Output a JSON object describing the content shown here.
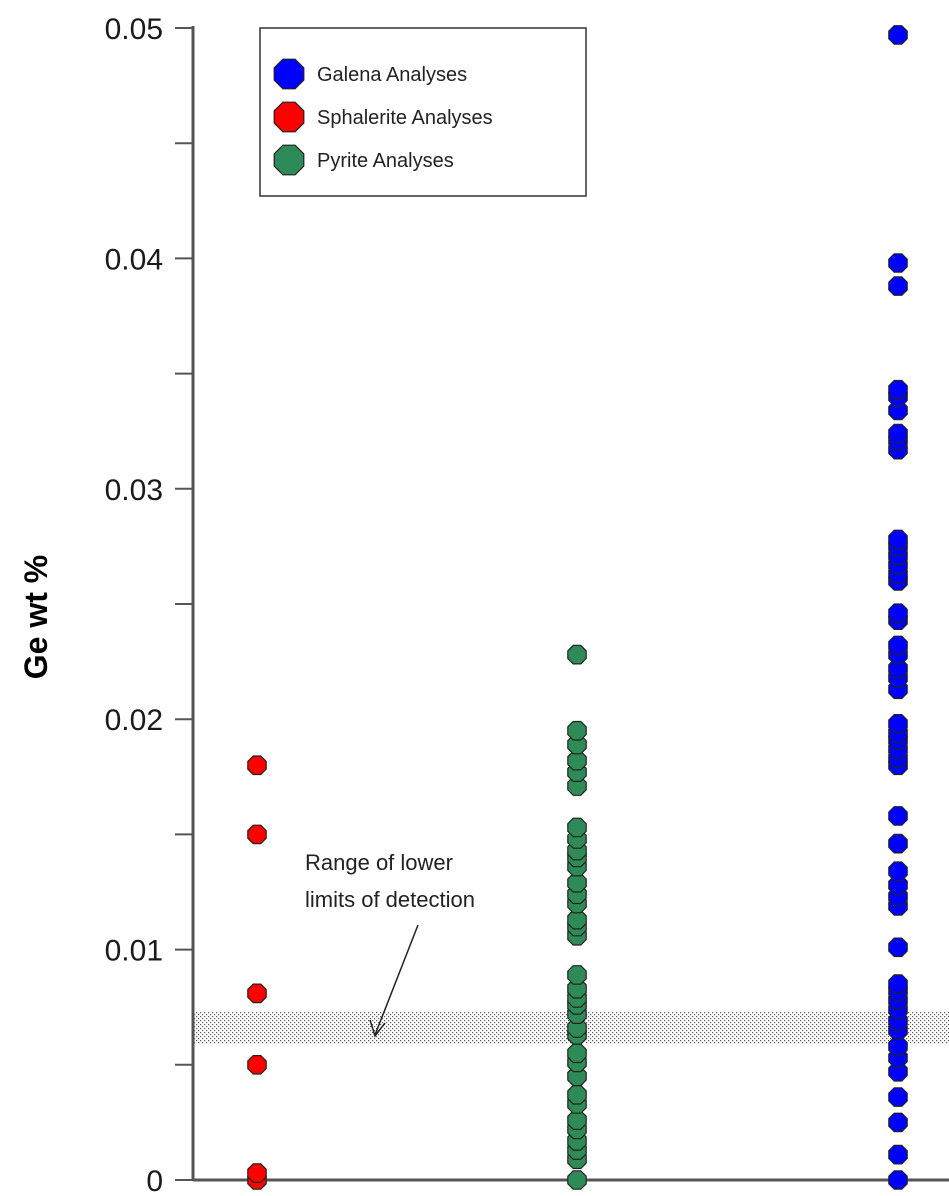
{
  "chart_data": {
    "type": "scatter",
    "title": "",
    "xlabel": "",
    "ylabel": "Ge wt %",
    "ylim": [
      0,
      0.05
    ],
    "yticks": [
      "0",
      "0.01",
      "0.02",
      "0.03",
      "0.04",
      "0.05"
    ],
    "grid": false,
    "legend_position": "top-left",
    "detection_band": [
      0.0059,
      0.0073
    ],
    "annotation": {
      "line1": "Range of lower",
      "line2": "limits of detection"
    },
    "series": [
      {
        "name": "Sphalerite Analyses",
        "color": "#ff0000",
        "values": [
          0,
          0.0003,
          0.005,
          0.0081,
          0.015,
          0.018
        ]
      },
      {
        "name": "Pyrite Analyses",
        "color": "#2e8b57",
        "values": [
          0,
          0.0009,
          0.0013,
          0.0017,
          0.0022,
          0.0026,
          0.0033,
          0.0037,
          0.0045,
          0.0051,
          0.0055,
          0.0063,
          0.0066,
          0.0072,
          0.0076,
          0.0079,
          0.0083,
          0.0089,
          0.0106,
          0.011,
          0.0113,
          0.012,
          0.0124,
          0.0129,
          0.0136,
          0.014,
          0.0143,
          0.0148,
          0.0153,
          0.0171,
          0.0177,
          0.0182,
          0.0189,
          0.0195,
          0.0228
        ]
      },
      {
        "name": "Galena Analyses",
        "color": "#0000ff",
        "values": [
          0,
          0.0011,
          0.0025,
          0.0036,
          0.0047,
          0.0053,
          0.0058,
          0.0065,
          0.0069,
          0.0074,
          0.0078,
          0.0082,
          0.0085,
          0.0101,
          0.0119,
          0.0123,
          0.0128,
          0.0134,
          0.0146,
          0.0158,
          0.018,
          0.0183,
          0.0187,
          0.0191,
          0.0194,
          0.0198,
          0.0213,
          0.0218,
          0.0222,
          0.0228,
          0.0232,
          0.0243,
          0.0246,
          0.026,
          0.0263,
          0.0267,
          0.0271,
          0.0275,
          0.0278,
          0.0317,
          0.0321,
          0.0324,
          0.0334,
          0.034,
          0.0343,
          0.0388,
          0.0398,
          0.0497
        ]
      }
    ],
    "legend": [
      {
        "label": "Galena Analyses",
        "color": "#0000ff"
      },
      {
        "label": "Sphalerite Analyses",
        "color": "#ff0000"
      },
      {
        "label": "Pyrite Analyses",
        "color": "#2e8b57"
      }
    ]
  }
}
